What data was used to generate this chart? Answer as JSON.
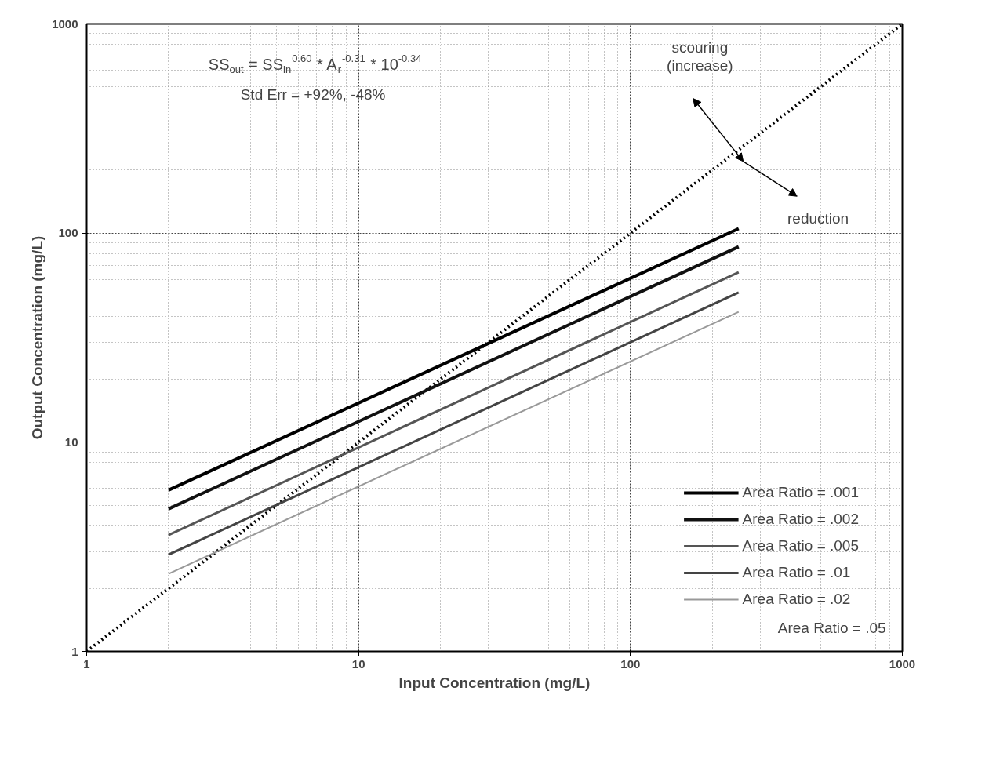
{
  "chart_data": {
    "type": "line",
    "xlabel": "Input Concentration (mg/L)",
    "ylabel": "Output Concentration (mg/L)",
    "log": "xy",
    "xlim": [
      1,
      1000
    ],
    "ylim": [
      1,
      1000
    ],
    "xticks": [
      1,
      10,
      100,
      1000
    ],
    "yticks": [
      1,
      10,
      100,
      1000
    ],
    "grid": true,
    "legend": "bottom right",
    "series": [
      {
        "x": [
          1,
          1000
        ],
        "values": [
          1,
          1000
        ],
        "color": "#000000",
        "line_style": "dotted"
      },
      {
        "name": "Area Ratio = .001",
        "x": [
          2,
          250
        ],
        "values": [
          5.9,
          105
        ],
        "color": "#000000"
      },
      {
        "name": "Area Ratio = .002",
        "x": [
          2,
          250
        ],
        "values": [
          4.8,
          86
        ],
        "color": "#111111"
      },
      {
        "name": "Area Ratio = .005",
        "x": [
          2,
          250
        ],
        "values": [
          3.6,
          65
        ],
        "color": "#555555"
      },
      {
        "name": "Area Ratio = .01",
        "x": [
          2,
          250
        ],
        "values": [
          2.9,
          52
        ],
        "color": "#444444"
      },
      {
        "name": "Area Ratio = .02",
        "x": [
          2,
          250
        ],
        "values": [
          2.35,
          42
        ],
        "color": "#999999"
      }
    ],
    "annotations": [
      "SS$_{out}$ = SS$_{in}$$^{0.60}$ * A$_{r}$$^{-0.31}$ * 10$^{-0.34}$",
      "Std Err = +92%, -48%",
      "scouring\n(increase)",
      "reduction",
      "Area Ratio = .05"
    ]
  }
}
